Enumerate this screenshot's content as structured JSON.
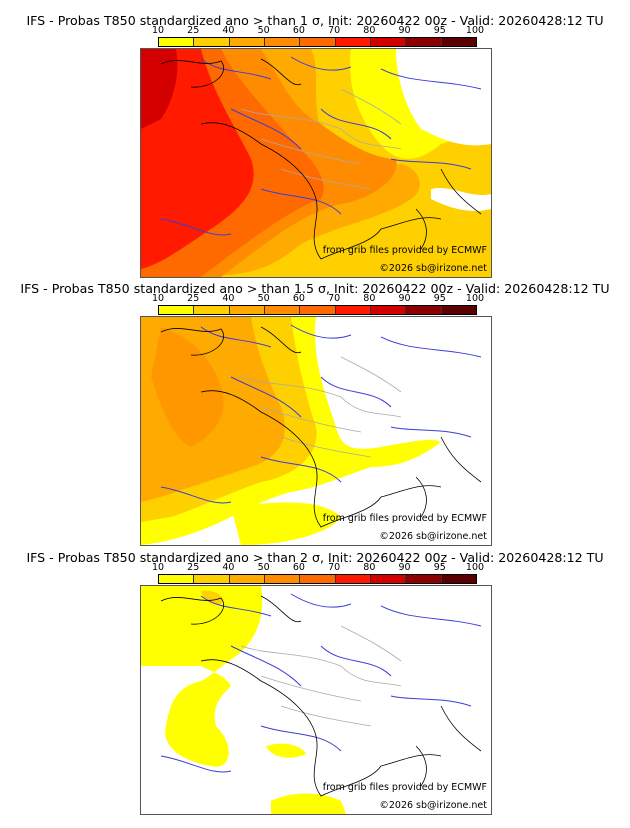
{
  "legend": {
    "ticks": [
      "10",
      "25",
      "40",
      "50",
      "60",
      "70",
      "80",
      "90",
      "95",
      "100"
    ],
    "colors": [
      "#ffff00",
      "#ffd000",
      "#ffaa00",
      "#ff8c00",
      "#ff6a00",
      "#ff1a00",
      "#d40000",
      "#8b0000",
      "#5a0000"
    ]
  },
  "panels": [
    {
      "title": "IFS - Probas T850  standardized ano > than 1 σ, Init: 20260422 00z - Valid: 20260428:12 TU",
      "threshold": "1 σ",
      "credit_source": "from grib files provided by ECMWF",
      "credit_copyright": "©2026 sb@irizone.net"
    },
    {
      "title": "IFS - Probas T850  standardized ano > than 1.5 σ, Init: 20260422 00z - Valid: 20260428:12 TU",
      "threshold": "1.5 σ",
      "credit_source": "from grib files provided by ECMWF",
      "credit_copyright": "©2026 sb@irizone.net"
    },
    {
      "title": "IFS - Probas T850  standardized ano > than 2 σ, Init: 20260422 00z - Valid: 20260428:12 TU",
      "threshold": "2 σ",
      "credit_source": "from grib files provided by ECMWF",
      "credit_copyright": "©2026 sb@irizone.net"
    }
  ],
  "map_colors": {
    "coast": "#000000",
    "rivers": "#3b3bdd",
    "borders": "#aaaaaa"
  }
}
